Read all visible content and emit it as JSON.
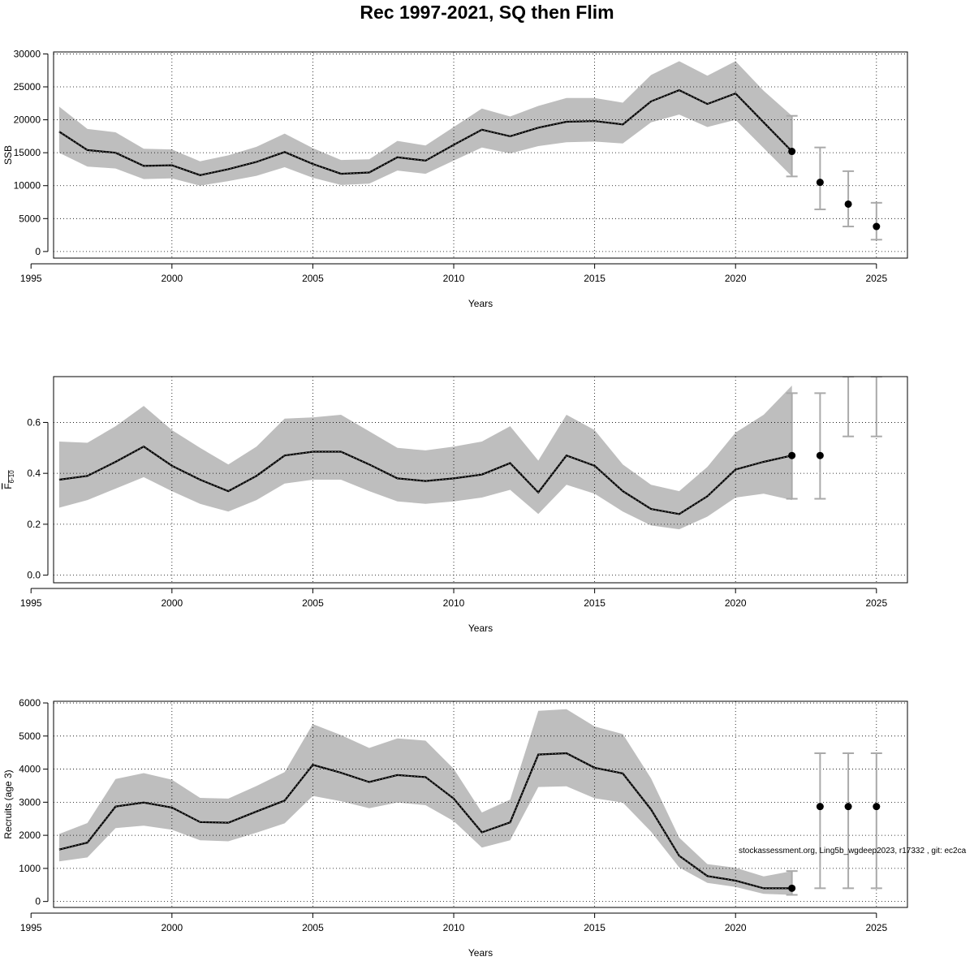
{
  "title": "Rec 1997-2021, SQ then Flim",
  "footnote": "stockassessment.org, Ling5b_wgdeep2023, r17332 , git: ec2ca",
  "colors": {
    "band": "#bebebe",
    "line": "#000000",
    "errorbar": "#aaaaaa",
    "grid": "#000000"
  },
  "chart_data": [
    {
      "type": "line",
      "name": "ssb-panel",
      "xlabel": "Years",
      "ylabel": "SSB",
      "ylabel_sub": "",
      "xlim": [
        1995.8,
        2026.1
      ],
      "ylim": [
        -1000,
        30300
      ],
      "xticks": [
        1995,
        2000,
        2005,
        2010,
        2015,
        2020,
        2025
      ],
      "yticks": [
        0,
        5000,
        10000,
        15000,
        20000,
        25000,
        30000
      ],
      "x": [
        1996,
        1997,
        1998,
        1999,
        2000,
        2001,
        2002,
        2003,
        2004,
        2005,
        2006,
        2007,
        2008,
        2009,
        2010,
        2011,
        2012,
        2013,
        2014,
        2015,
        2016,
        2017,
        2018,
        2019,
        2020,
        2021,
        2022
      ],
      "estimate": [
        18200,
        15400,
        15000,
        13000,
        13100,
        11600,
        12500,
        13600,
        15100,
        13300,
        11800,
        12000,
        14300,
        13800,
        16200,
        18500,
        17500,
        18800,
        19700,
        19800,
        19300,
        22800,
        24500,
        22400,
        24000,
        19600,
        15200
      ],
      "lower": [
        15000,
        12900,
        12600,
        11000,
        11100,
        10000,
        10700,
        11500,
        12800,
        11200,
        10100,
        10300,
        12300,
        11800,
        13800,
        15800,
        14900,
        16000,
        16600,
        16700,
        16400,
        19600,
        20800,
        18900,
        20000,
        15700,
        11400
      ],
      "upper": [
        22000,
        18600,
        18100,
        15600,
        15500,
        13700,
        14600,
        15900,
        17900,
        15700,
        13900,
        14000,
        16800,
        16100,
        18900,
        21700,
        20500,
        22100,
        23300,
        23300,
        22600,
        26800,
        28900,
        26700,
        28900,
        24400,
        20600
      ],
      "forecast": [
        {
          "year": 2022,
          "median": 15200,
          "low": 11400,
          "high": 20600
        },
        {
          "year": 2023,
          "median": 10500,
          "low": 6400,
          "high": 15800
        },
        {
          "year": 2024,
          "median": 7200,
          "low": 3800,
          "high": 12200
        },
        {
          "year": 2025,
          "median": 3800,
          "low": 1800,
          "high": 7400
        }
      ]
    },
    {
      "type": "line",
      "name": "fbar-panel",
      "xlabel": "Years",
      "ylabel": "F",
      "ylabel_sub": "6-10",
      "xlim": [
        1995.8,
        2026.1
      ],
      "ylim": [
        -0.03,
        0.78
      ],
      "xticks": [
        1995,
        2000,
        2005,
        2010,
        2015,
        2020,
        2025
      ],
      "yticks": [
        0.0,
        0.2,
        0.4,
        0.6
      ],
      "ytick_labels": [
        "0.0",
        "0.2",
        "0.4",
        "0.6"
      ],
      "x": [
        1996,
        1997,
        1998,
        1999,
        2000,
        2001,
        2002,
        2003,
        2004,
        2005,
        2006,
        2007,
        2008,
        2009,
        2010,
        2011,
        2012,
        2013,
        2014,
        2015,
        2016,
        2017,
        2018,
        2019,
        2020,
        2021,
        2022
      ],
      "estimate": [
        0.375,
        0.39,
        0.445,
        0.505,
        0.43,
        0.375,
        0.33,
        0.39,
        0.47,
        0.485,
        0.485,
        0.435,
        0.38,
        0.37,
        0.38,
        0.395,
        0.44,
        0.325,
        0.47,
        0.43,
        0.33,
        0.26,
        0.24,
        0.31,
        0.415,
        0.445,
        0.47
      ],
      "lower": [
        0.265,
        0.295,
        0.34,
        0.385,
        0.33,
        0.28,
        0.25,
        0.295,
        0.36,
        0.375,
        0.375,
        0.33,
        0.29,
        0.28,
        0.29,
        0.305,
        0.335,
        0.24,
        0.355,
        0.32,
        0.25,
        0.195,
        0.18,
        0.23,
        0.305,
        0.32,
        0.295
      ],
      "upper": [
        0.525,
        0.52,
        0.585,
        0.665,
        0.57,
        0.5,
        0.435,
        0.505,
        0.615,
        0.62,
        0.63,
        0.565,
        0.5,
        0.49,
        0.505,
        0.525,
        0.585,
        0.45,
        0.63,
        0.57,
        0.435,
        0.355,
        0.33,
        0.425,
        0.56,
        0.63,
        0.745
      ],
      "forecast": [
        {
          "year": 2022,
          "median": 0.47,
          "low": 0.3,
          "high": 0.715
        },
        {
          "year": 2023,
          "median": 0.47,
          "low": 0.3,
          "high": 0.715
        },
        {
          "year": 2024,
          "median": null,
          "low": 0.545,
          "high": 0.78
        },
        {
          "year": 2025,
          "median": null,
          "low": 0.545,
          "high": 0.78
        }
      ]
    },
    {
      "type": "line",
      "name": "recruits-panel",
      "xlabel": "Years",
      "ylabel": "Recruits (age 3)",
      "ylabel_sub": "",
      "xlim": [
        1995.8,
        2026.1
      ],
      "ylim": [
        -180,
        6050
      ],
      "xticks": [
        1995,
        2000,
        2005,
        2010,
        2015,
        2020,
        2025
      ],
      "yticks": [
        0,
        1000,
        2000,
        3000,
        4000,
        5000,
        6000
      ],
      "x": [
        1996,
        1997,
        1998,
        1999,
        2000,
        2001,
        2002,
        2003,
        2004,
        2005,
        2006,
        2007,
        2008,
        2009,
        2010,
        2011,
        2012,
        2013,
        2014,
        2015,
        2016,
        2017,
        2018,
        2019,
        2020,
        2021,
        2022
      ],
      "estimate": [
        1570,
        1780,
        2870,
        2990,
        2840,
        2400,
        2380,
        2720,
        3050,
        4130,
        3890,
        3610,
        3820,
        3760,
        3110,
        2090,
        2390,
        4440,
        4480,
        4040,
        3870,
        2780,
        1380,
        770,
        630,
        400,
        400
      ],
      "lower": [
        1210,
        1330,
        2220,
        2290,
        2170,
        1850,
        1820,
        2080,
        2360,
        3190,
        3030,
        2820,
        2990,
        2910,
        2430,
        1630,
        1850,
        3460,
        3480,
        3120,
        2990,
        2110,
        1030,
        560,
        440,
        230,
        200
      ],
      "upper": [
        2040,
        2370,
        3700,
        3880,
        3680,
        3130,
        3110,
        3490,
        3910,
        5360,
        5030,
        4640,
        4930,
        4860,
        4010,
        2690,
        3080,
        5760,
        5810,
        5290,
        5060,
        3720,
        1930,
        1130,
        1020,
        760,
        920
      ],
      "forecast": [
        {
          "year": 2022,
          "median": 400,
          "low": 200,
          "high": 920
        },
        {
          "year": 2023,
          "median": 2870,
          "low": 400,
          "high": 4480
        },
        {
          "year": 2024,
          "median": 2870,
          "low": 400,
          "high": 4480
        },
        {
          "year": 2025,
          "median": 2870,
          "low": 400,
          "high": 4480
        }
      ]
    }
  ]
}
